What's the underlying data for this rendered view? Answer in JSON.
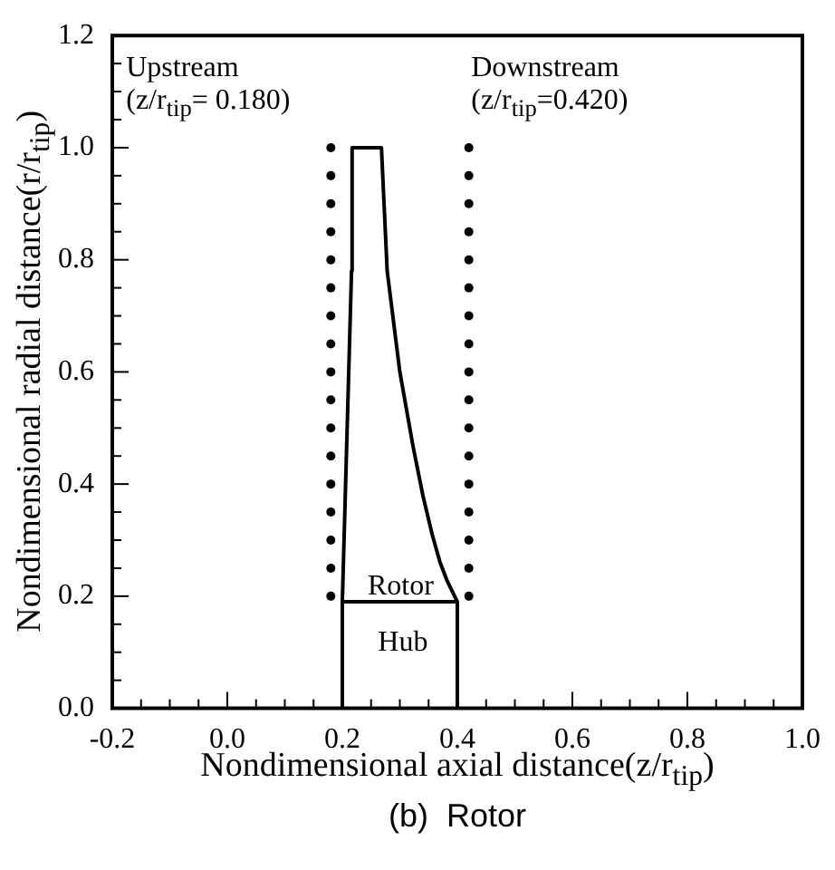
{
  "chart_data": {
    "type": "line",
    "title": "(b)  Rotor",
    "xlabel": "Nondimensional axial distance(z/r$_{tip}$)",
    "ylabel": "Nondimensional radial distance(r/r$_{tip}$)",
    "xlim": [
      -0.2,
      1.0
    ],
    "ylim": [
      0,
      1.2
    ],
    "xticks": [
      -0.2,
      {
        "value": -0.15,
        "label": null
      },
      {
        "value": -0.1,
        "label": null
      },
      {
        "value": -0.05,
        "label": null
      },
      {
        "value": 0,
        "label": "0.0"
      },
      {
        "value": 0.05,
        "label": null
      },
      {
        "value": 0.1,
        "label": null
      },
      {
        "value": 0.15,
        "label": null
      },
      0.2,
      {
        "value": 0.25,
        "label": null
      },
      {
        "value": 0.3,
        "label": null
      },
      {
        "value": 0.35,
        "label": null
      },
      0.4,
      {
        "value": 0.45,
        "label": null
      },
      {
        "value": 0.5,
        "label": null
      },
      {
        "value": 0.55,
        "label": null
      },
      0.6,
      {
        "value": 0.65,
        "label": null
      },
      {
        "value": 0.7,
        "label": null
      },
      {
        "value": 0.75,
        "label": null
      },
      0.8,
      {
        "value": 0.85,
        "label": null
      },
      {
        "value": 0.9,
        "label": null
      },
      {
        "value": 0.95,
        "label": null
      },
      {
        "value": 1,
        "label": "1.0"
      }
    ],
    "yticks": [
      {
        "value": 0,
        "label": "0.0"
      },
      {
        "value": 0.05,
        "label": null
      },
      {
        "value": 0.1,
        "label": null
      },
      {
        "value": 0.15,
        "label": null
      },
      0.2,
      {
        "value": 0.25,
        "label": null
      },
      {
        "value": 0.3,
        "label": null
      },
      {
        "value": 0.35,
        "label": null
      },
      0.4,
      {
        "value": 0.45,
        "label": null
      },
      {
        "value": 0.5,
        "label": null
      },
      {
        "value": 0.55,
        "label": null
      },
      0.6,
      {
        "value": 0.65,
        "label": null
      },
      {
        "value": 0.7,
        "label": null
      },
      {
        "value": 0.75,
        "label": null
      },
      0.8,
      {
        "value": 0.85,
        "label": null
      },
      {
        "value": 0.9,
        "label": null
      },
      {
        "value": 0.95,
        "label": null
      },
      {
        "value": 1,
        "label": "1.0"
      },
      {
        "value": 1.05,
        "label": null
      },
      {
        "value": 1.1,
        "label": null
      },
      {
        "value": 1.15,
        "label": null
      },
      1.2
    ],
    "grid": false,
    "legend": false,
    "series": [
      {
        "color": "#000000",
        "x": [
          0.2,
          0.216,
          0.217,
          0.268,
          0.278,
          0.3,
          0.323,
          0.34,
          0.356,
          0.37,
          0.382,
          0.4
        ],
        "values": [
          0.19,
          0.78,
          1.0,
          1.0,
          0.78,
          0.6,
          0.467,
          0.38,
          0.311,
          0.26,
          0.228,
          0.19
        ]
      },
      {
        "color": "#000000",
        "x": [
          0.2,
          0.2,
          0.4,
          0.4
        ],
        "values": [
          0,
          0.19,
          0.19,
          0
        ]
      },
      {
        "type": "scatter",
        "marker": "circle",
        "color": "#000000",
        "x": [
          0.18,
          0.18,
          0.18,
          0.18,
          0.18,
          0.18,
          0.18,
          0.18,
          0.18,
          0.18,
          0.18,
          0.18,
          0.18,
          0.18,
          0.18,
          0.18,
          0.18
        ],
        "values": [
          0.2,
          0.25,
          0.3,
          0.35,
          0.4,
          0.45,
          0.5,
          0.55,
          0.6,
          0.65,
          0.7,
          0.75,
          0.8,
          0.85,
          0.9,
          0.95,
          1.0
        ]
      },
      {
        "type": "scatter",
        "marker": "circle",
        "color": "#000000",
        "x": [
          0.42,
          0.42,
          0.42,
          0.42,
          0.42,
          0.42,
          0.42,
          0.42,
          0.42,
          0.42,
          0.42,
          0.42,
          0.42,
          0.42,
          0.42,
          0.42,
          0.42
        ],
        "values": [
          0.2,
          0.25,
          0.3,
          0.35,
          0.4,
          0.45,
          0.5,
          0.55,
          0.6,
          0.65,
          0.7,
          0.75,
          0.8,
          0.85,
          0.9,
          0.95,
          1.0
        ]
      }
    ],
    "annotations": [
      "Upstream",
      "(z/r$_{tip}$= 0.180)",
      "Downstream",
      "(z/r$_{tip}$=0.420)",
      "Rotor",
      "Hub"
    ]
  }
}
